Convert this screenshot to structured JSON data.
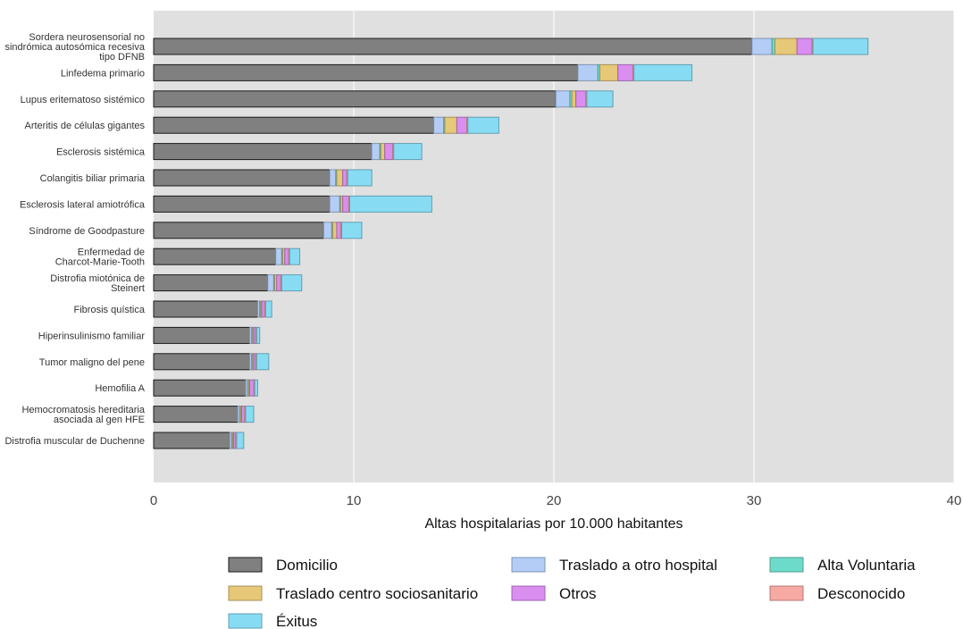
{
  "chart_data": {
    "type": "bar",
    "orientation": "horizontal",
    "stacked": true,
    "xlabel": "Altas hospitalarias por 10.000 habitantes",
    "xlim": [
      0,
      40
    ],
    "xticks": [
      0,
      10,
      20,
      30,
      40
    ],
    "grid": true,
    "legend_position": "bottom",
    "categories": [
      "Sordera neurosensorial no sindrómica autosómica recesiva tipo DFNB",
      "Linfedema primario",
      "Lupus eritematoso sistémico",
      "Arteritis de células gigantes",
      "Esclerosis sistémica",
      "Colangitis biliar primaria",
      "Esclerosis lateral amiotrófica",
      "Síndrome de Goodpasture",
      "Enfermedad de Charcot-Marie-Tooth",
      "Distrofia miotónica de Steinert",
      "Fibrosis quística",
      "Hiperinsulinismo familiar",
      "Tumor maligno del pene",
      "Hemofilia A",
      "Hemocromatosis hereditaria asociada al gen HFE",
      "Distrofia muscular de Duchenne"
    ],
    "category_lines": [
      [
        "Sordera neurosensorial no",
        "sindrómica autosómica recesiva",
        "tipo DFNB"
      ],
      [
        "Linfedema primario"
      ],
      [
        "Lupus eritematoso sistémico"
      ],
      [
        "Arteritis de células gigantes"
      ],
      [
        "Esclerosis sistémica"
      ],
      [
        "Colangitis biliar primaria"
      ],
      [
        "Esclerosis lateral amiotrófica"
      ],
      [
        "Síndrome de Goodpasture"
      ],
      [
        "Enfermedad de",
        "Charcot-Marie-Tooth"
      ],
      [
        "Distrofia miotónica de",
        "Steinert"
      ],
      [
        "Fibrosis quística"
      ],
      [
        "Hiperinsulinismo familiar"
      ],
      [
        "Tumor maligno del pene"
      ],
      [
        "Hemofilia A"
      ],
      [
        "Hemocromatosis hereditaria",
        "asociada al gen HFE"
      ],
      [
        "Distrofia muscular de Duchenne"
      ]
    ],
    "series": [
      {
        "name": "Domicilio",
        "color": "#808080",
        "values": [
          29.9,
          21.2,
          20.1,
          14.0,
          10.9,
          8.8,
          8.8,
          8.5,
          6.1,
          5.7,
          5.2,
          4.8,
          4.8,
          4.6,
          4.2,
          3.8
        ]
      },
      {
        "name": "Traslado a otro hospital",
        "color": "#b3cdf7",
        "values": [
          1.0,
          1.0,
          0.7,
          0.5,
          0.4,
          0.3,
          0.5,
          0.4,
          0.3,
          0.3,
          0.1,
          0.1,
          0.1,
          0.1,
          0.1,
          0.1
        ]
      },
      {
        "name": "Alta Voluntaria",
        "color": "#6ddbc9",
        "values": [
          0.15,
          0.1,
          0.1,
          0.05,
          0.05,
          0.05,
          0.05,
          0.05,
          0.05,
          0.05,
          0.05,
          0.05,
          0.05,
          0.05,
          0.05,
          0.05
        ]
      },
      {
        "name": "Traslado centro sociosanitario",
        "color": "#e6c878",
        "values": [
          1.1,
          0.9,
          0.2,
          0.6,
          0.2,
          0.3,
          0.1,
          0.2,
          0.1,
          0.1,
          0.05,
          0.05,
          0.05,
          0.05,
          0.05,
          0.05
        ]
      },
      {
        "name": "Otros",
        "color": "#d98ef0",
        "values": [
          0.75,
          0.75,
          0.5,
          0.5,
          0.4,
          0.2,
          0.3,
          0.2,
          0.2,
          0.2,
          0.15,
          0.1,
          0.1,
          0.2,
          0.15,
          0.1
        ]
      },
      {
        "name": "Desconocido",
        "color": "#f7aaa4",
        "values": [
          0.05,
          0.05,
          0.05,
          0.05,
          0.05,
          0.05,
          0.05,
          0.05,
          0.05,
          0.05,
          0.05,
          0.05,
          0.05,
          0.05,
          0.05,
          0.05
        ]
      },
      {
        "name": "Éxitus",
        "color": "#87dcf4",
        "values": [
          2.75,
          2.9,
          1.3,
          1.55,
          1.4,
          1.2,
          4.1,
          1.0,
          0.5,
          1.0,
          0.3,
          0.15,
          0.6,
          0.15,
          0.4,
          0.35
        ]
      }
    ],
    "legend_order": [
      "Domicilio",
      "Traslado a otro hospital",
      "Alta Voluntaria",
      "Traslado centro sociosanitario",
      "Otros",
      "Desconocido",
      "Éxitus"
    ]
  }
}
